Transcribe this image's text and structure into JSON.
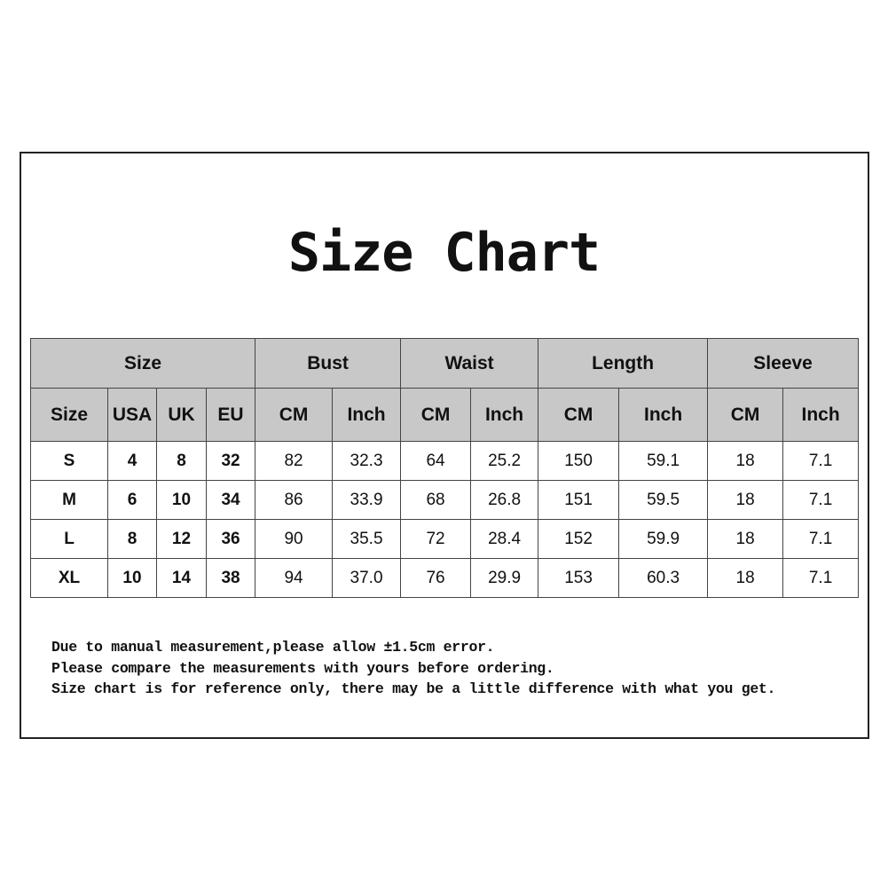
{
  "title": "Size Chart",
  "table": {
    "groups": [
      "Size",
      "Bust",
      "Waist",
      "Length",
      "Sleeve"
    ],
    "subheaders": [
      "Size",
      "USA",
      "UK",
      "EU",
      "CM",
      "Inch",
      "CM",
      "Inch",
      "CM",
      "Inch",
      "CM",
      "Inch"
    ],
    "rows": [
      [
        "S",
        "4",
        "8",
        "32",
        "82",
        "32.3",
        "64",
        "25.2",
        "150",
        "59.1",
        "18",
        "7.1"
      ],
      [
        "M",
        "6",
        "10",
        "34",
        "86",
        "33.9",
        "68",
        "26.8",
        "151",
        "59.5",
        "18",
        "7.1"
      ],
      [
        "L",
        "8",
        "12",
        "36",
        "90",
        "35.5",
        "72",
        "28.4",
        "152",
        "59.9",
        "18",
        "7.1"
      ],
      [
        "XL",
        "10",
        "14",
        "38",
        "94",
        "37.0",
        "76",
        "29.9",
        "153",
        "60.3",
        "18",
        "7.1"
      ]
    ]
  },
  "notes": [
    "Due to manual measurement,please allow ±1.5cm error.",
    "Please compare the measurements with yours before ordering.",
    "Size chart is for reference only, there may be a little difference with what you get."
  ],
  "colors": {
    "header_bg": "#c8c8c8",
    "border": "#444444"
  }
}
